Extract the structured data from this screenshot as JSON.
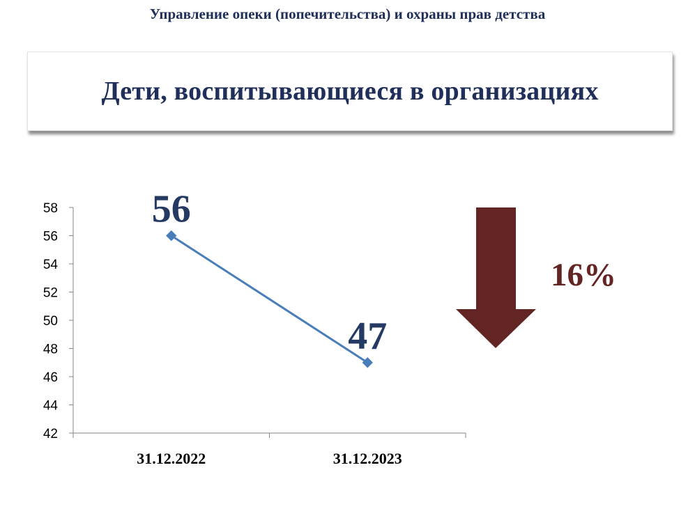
{
  "header": {
    "organization": "Управление опеки (попечительства) и охраны прав детства"
  },
  "slide": {
    "title": "Дети, воспитывающиеся в организациях"
  },
  "indicator": {
    "change_text": "16%",
    "direction": "down",
    "arrow_icon": "arrow-down-icon"
  },
  "colors": {
    "title_text": "#1f2f5a",
    "line": "#4a7ebb",
    "data_label": "#243a63",
    "arrow": "#632523"
  },
  "chart_data": {
    "type": "line",
    "categories": [
      "31.12.2022",
      "31.12.2023"
    ],
    "series": [
      {
        "values": [
          56,
          47
        ]
      }
    ],
    "data_labels": [
      "56",
      "47"
    ],
    "ylim": [
      42,
      58
    ],
    "yticks": [
      42,
      44,
      46,
      48,
      50,
      52,
      54,
      56,
      58
    ],
    "grid": false,
    "legend": "none"
  }
}
